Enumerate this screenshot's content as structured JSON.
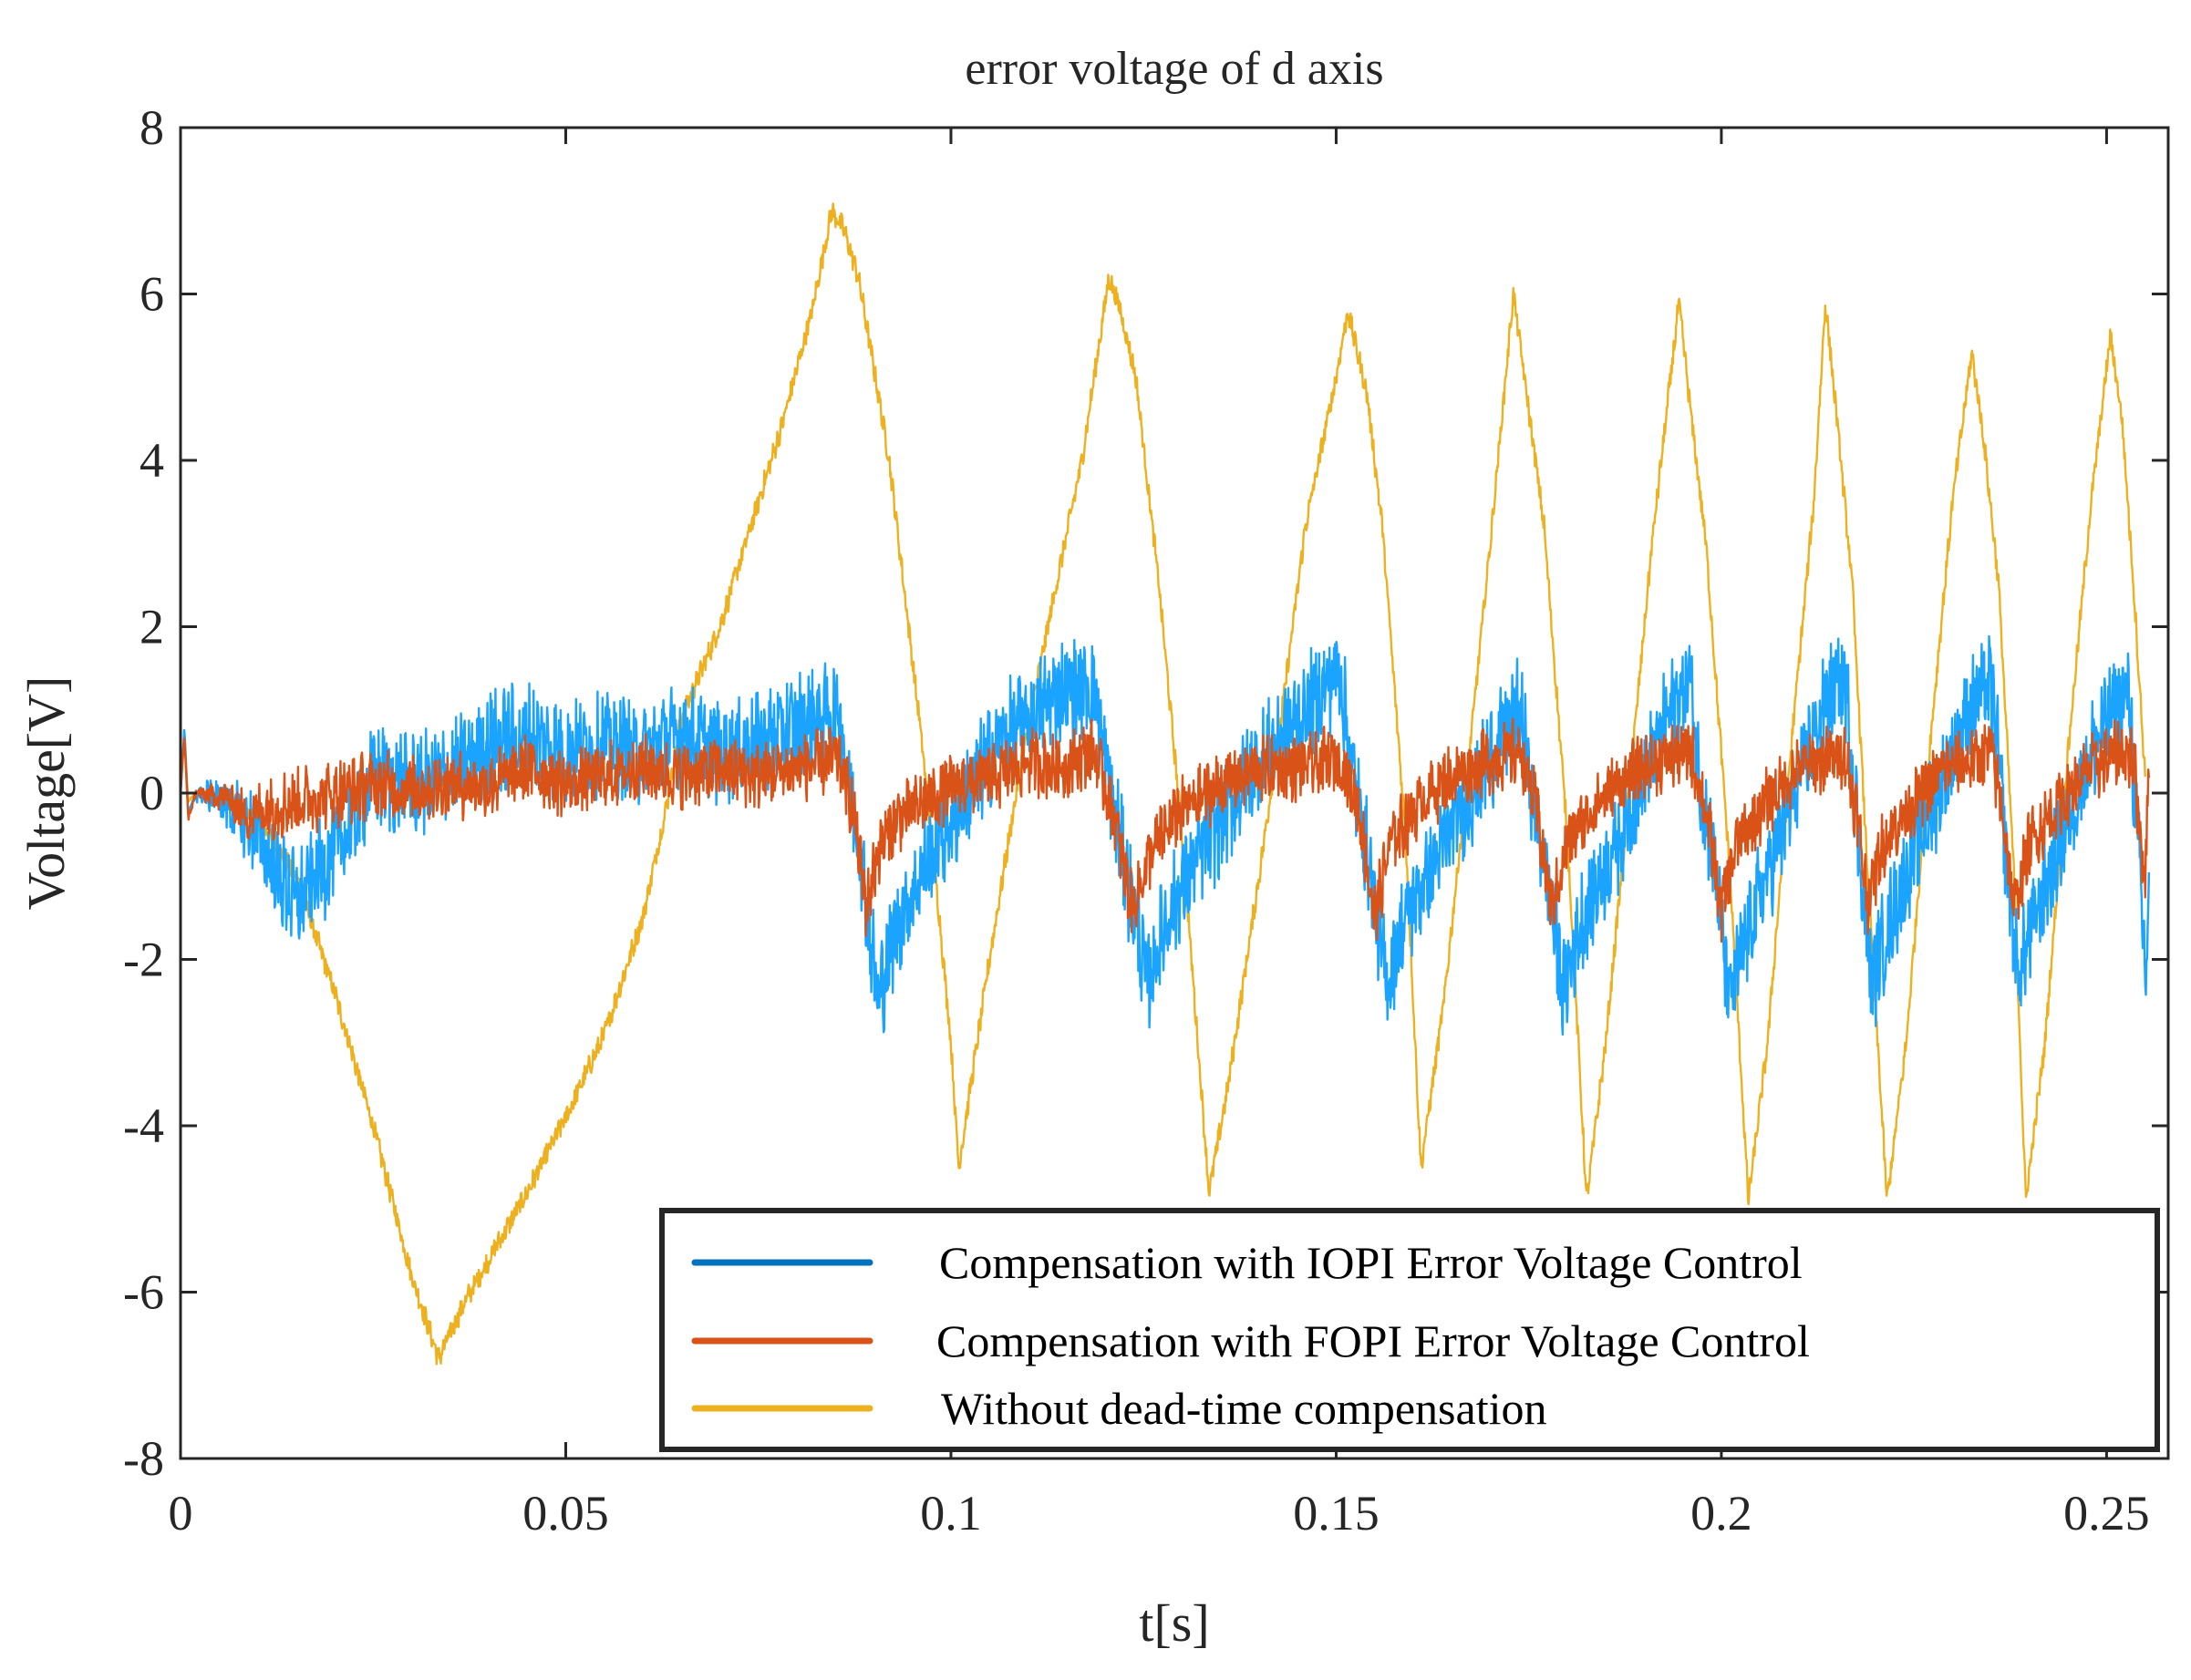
{
  "chart_data": {
    "type": "line",
    "title": "error voltage of d axis",
    "xlabel": "t[s]",
    "ylabel": "Voltage[V]",
    "xlim": [
      0,
      0.258
    ],
    "ylim": [
      -8,
      8
    ],
    "x_ticks": [
      0,
      0.05,
      0.1,
      0.15,
      0.2,
      0.25
    ],
    "x_tick_labels": [
      "0",
      "0.05",
      "0.1",
      "0.15",
      "0.2",
      "0.25"
    ],
    "y_ticks": [
      -8,
      -6,
      -4,
      -2,
      0,
      2,
      4,
      6,
      8
    ],
    "y_tick_labels": [
      "-8",
      "-6",
      "-4",
      "-2",
      "0",
      "2",
      "4",
      "6",
      "8"
    ],
    "grid": false,
    "legend_position": "bottom-right",
    "series": [
      {
        "name": "Compensation with IOPI Error Voltage Control",
        "color": "#0072BD",
        "plot_color": "#1AA3FF",
        "noise": 0.55,
        "points": [
          [
            0,
            0
          ],
          [
            0.0005,
            0.8
          ],
          [
            0.001,
            -0.3
          ],
          [
            0.002,
            0
          ],
          [
            0.005,
            -0.05
          ],
          [
            0.01,
            -0.5
          ],
          [
            0.015,
            -1.35
          ],
          [
            0.02,
            -0.7
          ],
          [
            0.022,
            -0.4
          ],
          [
            0.025,
            0.2
          ],
          [
            0.03,
            0.1
          ],
          [
            0.035,
            0.2
          ],
          [
            0.04,
            0.6
          ],
          [
            0.045,
            0.7
          ],
          [
            0.05,
            0.5
          ],
          [
            0.055,
            0.6
          ],
          [
            0.06,
            0.5
          ],
          [
            0.065,
            0.7
          ],
          [
            0.07,
            0.5
          ],
          [
            0.075,
            0.6
          ],
          [
            0.08,
            0.8
          ],
          [
            0.0855,
            1.0
          ],
          [
            0.0865,
            0.3
          ],
          [
            0.088,
            -0.5
          ],
          [
            0.0905,
            -2.5
          ],
          [
            0.093,
            -1.6
          ],
          [
            0.097,
            -0.8
          ],
          [
            0.101,
            -0.2
          ],
          [
            0.106,
            0.6
          ],
          [
            0.11,
            0.9
          ],
          [
            0.114,
            1.2
          ],
          [
            0.1185,
            1.3
          ],
          [
            0.12,
            0.4
          ],
          [
            0.122,
            -0.6
          ],
          [
            0.1255,
            -2.3
          ],
          [
            0.128,
            -1.5
          ],
          [
            0.132,
            -0.8
          ],
          [
            0.136,
            -0.2
          ],
          [
            0.14,
            0.4
          ],
          [
            0.144,
            0.8
          ],
          [
            0.148,
            1.2
          ],
          [
            0.1505,
            1.5
          ],
          [
            0.152,
            0.3
          ],
          [
            0.154,
            -0.7
          ],
          [
            0.1565,
            -2.3
          ],
          [
            0.159,
            -1.5
          ],
          [
            0.163,
            -0.8
          ],
          [
            0.167,
            -0.1
          ],
          [
            0.171,
            0.6
          ],
          [
            0.174,
            1.0
          ],
          [
            0.175,
            0.2
          ],
          [
            0.177,
            -0.8
          ],
          [
            0.1795,
            -2.4
          ],
          [
            0.182,
            -1.5
          ],
          [
            0.186,
            -0.7
          ],
          [
            0.19,
            0.2
          ],
          [
            0.193,
            0.9
          ],
          [
            0.196,
            1.4
          ],
          [
            0.197,
            0.3
          ],
          [
            0.199,
            -0.8
          ],
          [
            0.201,
            -2.5
          ],
          [
            0.204,
            -1.5
          ],
          [
            0.207,
            -0.7
          ],
          [
            0.21,
            0.1
          ],
          [
            0.213,
            1.0
          ],
          [
            0.216,
            1.4
          ],
          [
            0.217,
            0.4
          ],
          [
            0.218,
            -0.8
          ],
          [
            0.2195,
            -2.3
          ],
          [
            0.222,
            -1.5
          ],
          [
            0.225,
            -0.7
          ],
          [
            0.229,
            0.2
          ],
          [
            0.232,
            1.0
          ],
          [
            0.235,
            1.3
          ],
          [
            0.236,
            0.4
          ],
          [
            0.237,
            -0.8
          ],
          [
            0.2385,
            -2.2
          ],
          [
            0.241,
            -1.4
          ],
          [
            0.244,
            -0.6
          ],
          [
            0.248,
            0.5
          ],
          [
            0.251,
            1.0
          ],
          [
            0.253,
            1.2
          ],
          [
            0.2535,
            0.2
          ],
          [
            0.2545,
            -1.2
          ],
          [
            0.255,
            -2.2
          ],
          [
            0.2555,
            -1.4
          ]
        ]
      },
      {
        "name": "Compensation with FOPI Error Voltage Control",
        "color": "#D95319",
        "plot_color": "#D95319",
        "noise": 0.35,
        "points": [
          [
            0,
            0
          ],
          [
            0.0005,
            0.7
          ],
          [
            0.001,
            -0.3
          ],
          [
            0.002,
            0
          ],
          [
            0.006,
            -0.05
          ],
          [
            0.009,
            -0.3
          ],
          [
            0.01,
            -0.2
          ],
          [
            0.015,
            -0.1
          ],
          [
            0.02,
            0
          ],
          [
            0.025,
            0.1
          ],
          [
            0.03,
            0.05
          ],
          [
            0.035,
            0.1
          ],
          [
            0.04,
            0.1
          ],
          [
            0.045,
            0.3
          ],
          [
            0.05,
            0.1
          ],
          [
            0.055,
            0.2
          ],
          [
            0.06,
            0.3
          ],
          [
            0.065,
            0.2
          ],
          [
            0.07,
            0.3
          ],
          [
            0.075,
            0.2
          ],
          [
            0.08,
            0.3
          ],
          [
            0.0855,
            0.4
          ],
          [
            0.0875,
            -0.3
          ],
          [
            0.089,
            -1.4
          ],
          [
            0.0905,
            -0.7
          ],
          [
            0.093,
            -0.3
          ],
          [
            0.097,
            -0.1
          ],
          [
            0.101,
            0.1
          ],
          [
            0.106,
            0.2
          ],
          [
            0.11,
            0.4
          ],
          [
            0.114,
            0.3
          ],
          [
            0.1185,
            0.5
          ],
          [
            0.121,
            -0.2
          ],
          [
            0.1235,
            -1.4
          ],
          [
            0.126,
            -0.7
          ],
          [
            0.13,
            -0.2
          ],
          [
            0.135,
            0.1
          ],
          [
            0.14,
            0.3
          ],
          [
            0.145,
            0.3
          ],
          [
            0.1505,
            0.4
          ],
          [
            0.153,
            -0.2
          ],
          [
            0.155,
            -1.5
          ],
          [
            0.157,
            -0.6
          ],
          [
            0.161,
            -0.1
          ],
          [
            0.165,
            0.2
          ],
          [
            0.17,
            0.4
          ],
          [
            0.174,
            0.5
          ],
          [
            0.176,
            -0.2
          ],
          [
            0.178,
            -1.4
          ],
          [
            0.18,
            -0.6
          ],
          [
            0.184,
            -0.1
          ],
          [
            0.188,
            0.2
          ],
          [
            0.192,
            0.4
          ],
          [
            0.196,
            0.5
          ],
          [
            0.198,
            -0.2
          ],
          [
            0.2,
            -1.4
          ],
          [
            0.202,
            -0.6
          ],
          [
            0.206,
            -0.1
          ],
          [
            0.21,
            0.3
          ],
          [
            0.214,
            0.4
          ],
          [
            0.216,
            0.5
          ],
          [
            0.2175,
            -0.2
          ],
          [
            0.219,
            -1.3
          ],
          [
            0.221,
            -0.6
          ],
          [
            0.225,
            -0.1
          ],
          [
            0.229,
            0.3
          ],
          [
            0.233,
            0.4
          ],
          [
            0.235,
            0.5
          ],
          [
            0.2365,
            -0.2
          ],
          [
            0.238,
            -1.4
          ],
          [
            0.24,
            -0.6
          ],
          [
            0.244,
            -0.1
          ],
          [
            0.248,
            0.3
          ],
          [
            0.252,
            0.5
          ],
          [
            0.2535,
            0.4
          ],
          [
            0.2545,
            -0.6
          ],
          [
            0.255,
            -1.0
          ],
          [
            0.2555,
            0.3
          ]
        ]
      },
      {
        "name": "Without dead-time compensation",
        "color": "#EDB120",
        "plot_color": "#EDB120",
        "noise": 0.12,
        "points": [
          [
            0,
            0
          ],
          [
            0.0005,
            0.7
          ],
          [
            0.001,
            -0.1
          ],
          [
            0.002,
            0
          ],
          [
            0.005,
            -0.05
          ],
          [
            0.01,
            -0.3
          ],
          [
            0.015,
            -1.0
          ],
          [
            0.02,
            -2.4
          ],
          [
            0.025,
            -4.0
          ],
          [
            0.03,
            -5.8
          ],
          [
            0.0335,
            -6.8
          ],
          [
            0.037,
            -6.1
          ],
          [
            0.045,
            -4.8
          ],
          [
            0.05,
            -3.9
          ],
          [
            0.055,
            -2.9
          ],
          [
            0.06,
            -1.5
          ],
          [
            0.063,
            -0.2
          ],
          [
            0.065,
            0.9
          ],
          [
            0.07,
            2.0
          ],
          [
            0.074,
            3.2
          ],
          [
            0.078,
            4.4
          ],
          [
            0.082,
            5.8
          ],
          [
            0.0845,
            7.0
          ],
          [
            0.086,
            6.8
          ],
          [
            0.088,
            6.2
          ],
          [
            0.092,
            4.0
          ],
          [
            0.096,
            0.8
          ],
          [
            0.098,
            -1.0
          ],
          [
            0.1,
            -3.0
          ],
          [
            0.101,
            -4.5
          ],
          [
            0.105,
            -2.0
          ],
          [
            0.109,
            0.3
          ],
          [
            0.113,
            2.2
          ],
          [
            0.117,
            4.0
          ],
          [
            0.1205,
            6.2
          ],
          [
            0.122,
            5.8
          ],
          [
            0.124,
            5.0
          ],
          [
            0.127,
            2.5
          ],
          [
            0.13,
            -0.5
          ],
          [
            0.1335,
            -4.8
          ],
          [
            0.136,
            -3.5
          ],
          [
            0.14,
            -1.0
          ],
          [
            0.143,
            1.0
          ],
          [
            0.146,
            3.2
          ],
          [
            0.15,
            5.0
          ],
          [
            0.1515,
            5.8
          ],
          [
            0.154,
            4.8
          ],
          [
            0.156,
            3.2
          ],
          [
            0.159,
            -0.5
          ],
          [
            0.161,
            -4.5
          ],
          [
            0.164,
            -2.5
          ],
          [
            0.167,
            0.2
          ],
          [
            0.17,
            3.0
          ],
          [
            0.173,
            6.0
          ],
          [
            0.175,
            4.6
          ],
          [
            0.177,
            3.2
          ],
          [
            0.18,
            -0.5
          ],
          [
            0.1825,
            -4.9
          ],
          [
            0.185,
            -3.0
          ],
          [
            0.188,
            0.0
          ],
          [
            0.191,
            3.0
          ],
          [
            0.1945,
            5.9
          ],
          [
            0.196,
            4.6
          ],
          [
            0.198,
            3.0
          ],
          [
            0.201,
            -0.8
          ],
          [
            0.2035,
            -4.9
          ],
          [
            0.206,
            -3.0
          ],
          [
            0.209,
            0.5
          ],
          [
            0.212,
            3.5
          ],
          [
            0.2135,
            5.9
          ],
          [
            0.215,
            4.5
          ],
          [
            0.217,
            2.5
          ],
          [
            0.219,
            -1.0
          ],
          [
            0.2215,
            -4.9
          ],
          [
            0.224,
            -3.0
          ],
          [
            0.227,
            0.5
          ],
          [
            0.23,
            3.5
          ],
          [
            0.2325,
            5.3
          ],
          [
            0.234,
            4.3
          ],
          [
            0.236,
            2.5
          ],
          [
            0.238,
            -1.0
          ],
          [
            0.2395,
            -4.9
          ],
          [
            0.242,
            -3.0
          ],
          [
            0.245,
            0.5
          ],
          [
            0.248,
            3.5
          ],
          [
            0.2505,
            5.5
          ],
          [
            0.252,
            4.5
          ],
          [
            0.2535,
            2.5
          ],
          [
            0.255,
            0.2
          ]
        ]
      }
    ]
  }
}
